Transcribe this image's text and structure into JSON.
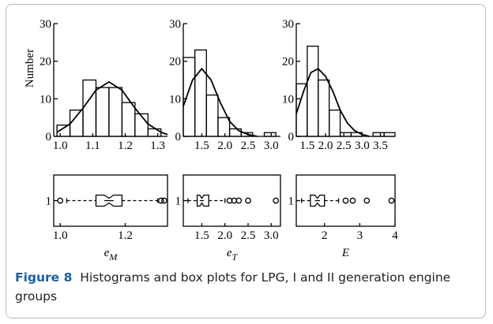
{
  "chart_data": [
    {
      "type": "histogram",
      "ylabel": "Number",
      "bins": [
        0.99,
        1.03,
        1.07,
        1.11,
        1.15,
        1.19,
        1.23,
        1.27,
        1.31
      ],
      "counts": [
        3,
        7,
        15,
        13,
        13,
        9,
        6,
        2
      ],
      "fit": {
        "x": [
          0.99,
          1.03,
          1.07,
          1.11,
          1.15,
          1.19,
          1.23,
          1.27,
          1.31,
          1.33
        ],
        "values": [
          1.1,
          3.3,
          7.5,
          12.3,
          14.5,
          12.3,
          7.5,
          3.3,
          1.1,
          0.5
        ]
      },
      "xlim": [
        0.98,
        1.33
      ],
      "xticks": [
        {
          "value": 1,
          "label": "1.0"
        },
        {
          "value": 1.1,
          "label": "1.1"
        },
        {
          "value": 1.2,
          "label": "1.2"
        },
        {
          "value": 1.3,
          "label": "1.3"
        }
      ],
      "ylim": [
        0,
        30
      ],
      "yticks": [
        0,
        10,
        20,
        30
      ]
    },
    {
      "type": "histogram",
      "bins": [
        1.1,
        1.35,
        1.6,
        1.85,
        2.1,
        2.35,
        2.6,
        2.85,
        3.1
      ],
      "counts": [
        21,
        23,
        11,
        5,
        2,
        1,
        0,
        1
      ],
      "fit": {
        "x": [
          1.1,
          1.3,
          1.5,
          1.7,
          1.9,
          2.1,
          2.3,
          2.5,
          2.7
        ],
        "values": [
          8,
          15,
          18,
          15,
          9,
          4,
          1.5,
          0.5,
          0
        ]
      },
      "xlim": [
        1.1,
        3.2
      ],
      "xticks": [
        1.5,
        {
          "value": 2,
          "label": "2.0"
        },
        2.5,
        {
          "value": 3,
          "label": "3.0"
        }
      ],
      "ylim": [
        0,
        30
      ],
      "yticks": [
        0,
        10,
        20,
        30
      ]
    },
    {
      "type": "histogram",
      "bins": [
        1.2,
        1.5,
        1.8,
        2.1,
        2.4,
        2.7,
        3.0,
        3.3,
        3.6,
        3.9
      ],
      "counts": [
        14,
        24,
        15,
        7,
        1,
        1,
        0,
        1,
        1
      ],
      "fit": {
        "x": [
          1.2,
          1.4,
          1.6,
          1.8,
          2.0,
          2.2,
          2.4,
          2.6,
          2.8,
          3.0,
          3.2
        ],
        "values": [
          6,
          12,
          17,
          18,
          16,
          12,
          7,
          3.5,
          1.5,
          0.5,
          0
        ]
      },
      "xlim": [
        1.2,
        3.9
      ],
      "xticks": [
        1.5,
        {
          "value": 2,
          "label": "2.0"
        },
        2.5,
        {
          "value": 3,
          "label": "3.0"
        },
        3.5
      ],
      "ylim": [
        0,
        30
      ],
      "yticks": [
        0,
        10,
        20,
        30
      ]
    },
    {
      "type": "box",
      "xlabel": {
        "main": "e",
        "sub": "M"
      },
      "whisker_low": 1.02,
      "q1": 1.11,
      "median": 1.15,
      "q3": 1.19,
      "whisker_high": 1.3,
      "outliers": [
        1.0,
        1.31,
        1.32
      ],
      "xlim": [
        0.98,
        1.33
      ],
      "xticks": [
        {
          "value": 1,
          "label": "1.0"
        },
        1.2
      ],
      "ylim": [
        0.5,
        1.5
      ],
      "yticks": [
        1
      ]
    },
    {
      "type": "box",
      "xlabel": {
        "main": "e",
        "sub": "T"
      },
      "whisker_low": 1.2,
      "q1": 1.4,
      "median": 1.5,
      "q3": 1.65,
      "whisker_high": 2.0,
      "outliers": [
        2.1,
        2.2,
        2.3,
        2.5,
        3.1
      ],
      "xlim": [
        1.1,
        3.2
      ],
      "xticks": [
        1.5,
        {
          "value": 2,
          "label": "2.0"
        },
        2.5,
        {
          "value": 3,
          "label": "3.0"
        }
      ],
      "ylim": [
        0.5,
        1.5
      ],
      "yticks": [
        1
      ]
    },
    {
      "type": "box",
      "xlabel": {
        "main": "E"
      },
      "whisker_low": 1.35,
      "q1": 1.6,
      "median": 1.8,
      "q3": 2.0,
      "whisker_high": 2.4,
      "outliers": [
        2.6,
        2.8,
        3.2,
        3.9
      ],
      "xlim": [
        1.2,
        4.0
      ],
      "xticks": [
        2,
        3,
        4
      ],
      "ylim": [
        0.5,
        1.5
      ],
      "yticks": [
        1
      ]
    }
  ],
  "caption": {
    "label": "Figure 8",
    "text": "Histograms and box plots for LPG, I and II generation engine groups"
  }
}
